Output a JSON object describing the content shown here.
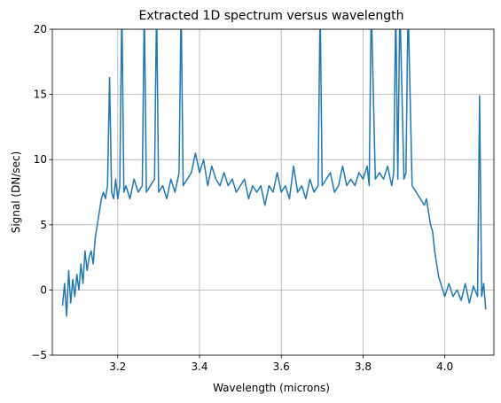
{
  "chart_data": {
    "type": "line",
    "title": "Extracted 1D spectrum versus wavelength",
    "xlabel": "Wavelength (microns)",
    "ylabel": "Signal (DN/sec)",
    "xlim": [
      3.04,
      4.12
    ],
    "ylim": [
      -5,
      20
    ],
    "xticks": [
      3.2,
      3.4,
      3.6,
      3.8,
      4.0
    ],
    "xtick_labels": [
      "3.2",
      "3.4",
      "3.6",
      "3.8",
      "4.0"
    ],
    "yticks": [
      -5,
      0,
      5,
      10,
      15,
      20
    ],
    "ytick_labels": [
      "−5",
      "0",
      "5",
      "10",
      "15",
      "20"
    ],
    "grid": true,
    "series": [
      {
        "color": "#1f77b4",
        "x": [
          3.065,
          3.07,
          3.075,
          3.08,
          3.085,
          3.09,
          3.095,
          3.1,
          3.105,
          3.11,
          3.115,
          3.12,
          3.125,
          3.13,
          3.135,
          3.14,
          3.145,
          3.15,
          3.155,
          3.16,
          3.165,
          3.17,
          3.175,
          3.18,
          3.185,
          3.19,
          3.195,
          3.2,
          3.205,
          3.21,
          3.215,
          3.22,
          3.23,
          3.24,
          3.25,
          3.26,
          3.265,
          3.27,
          3.28,
          3.29,
          3.295,
          3.3,
          3.31,
          3.32,
          3.33,
          3.34,
          3.35,
          3.355,
          3.36,
          3.37,
          3.38,
          3.39,
          3.4,
          3.41,
          3.42,
          3.43,
          3.44,
          3.45,
          3.46,
          3.47,
          3.48,
          3.49,
          3.5,
          3.51,
          3.52,
          3.53,
          3.54,
          3.55,
          3.56,
          3.57,
          3.58,
          3.59,
          3.6,
          3.61,
          3.62,
          3.63,
          3.64,
          3.65,
          3.66,
          3.67,
          3.68,
          3.69,
          3.695,
          3.7,
          3.71,
          3.72,
          3.73,
          3.74,
          3.75,
          3.76,
          3.77,
          3.78,
          3.79,
          3.8,
          3.81,
          3.815,
          3.82,
          3.83,
          3.84,
          3.85,
          3.86,
          3.87,
          3.875,
          3.88,
          3.885,
          3.89,
          3.9,
          3.905,
          3.91,
          3.92,
          3.93,
          3.94,
          3.95,
          3.955,
          3.96,
          3.965,
          3.97,
          3.975,
          3.98,
          3.985,
          3.99,
          3.995,
          4.0,
          4.01,
          4.02,
          4.03,
          4.04,
          4.05,
          4.06,
          4.07,
          4.08,
          4.085,
          4.09,
          4.095,
          4.1
        ],
        "y": [
          -1.2,
          0.5,
          -2.0,
          1.5,
          -1.0,
          0.8,
          -0.5,
          1.2,
          0.0,
          2.0,
          0.5,
          3.0,
          1.5,
          2.5,
          3.0,
          2.0,
          4.0,
          5.0,
          6.0,
          7.0,
          7.5,
          7.0,
          8.0,
          16.3,
          7.5,
          7.0,
          8.5,
          7.0,
          8.0,
          22.0,
          7.5,
          8.0,
          7.0,
          8.5,
          7.5,
          8.0,
          22.0,
          7.5,
          8.0,
          8.5,
          22.0,
          7.5,
          8.0,
          7.0,
          8.5,
          7.5,
          9.0,
          22.0,
          8.0,
          8.5,
          9.0,
          10.5,
          9.0,
          10.0,
          8.0,
          9.5,
          8.5,
          8.0,
          9.0,
          8.0,
          8.5,
          7.5,
          8.0,
          8.5,
          7.0,
          8.0,
          7.5,
          8.0,
          6.5,
          8.0,
          7.5,
          9.0,
          7.5,
          8.0,
          7.0,
          9.5,
          7.5,
          8.0,
          7.0,
          8.5,
          7.5,
          8.0,
          22.0,
          8.0,
          8.5,
          9.0,
          7.5,
          8.0,
          9.5,
          8.0,
          8.5,
          8.0,
          9.0,
          8.5,
          9.5,
          8.0,
          22.0,
          8.5,
          9.0,
          8.5,
          9.5,
          8.0,
          9.0,
          22.0,
          8.5,
          22.0,
          8.5,
          9.0,
          22.0,
          8.0,
          7.5,
          7.0,
          6.5,
          7.0,
          6.0,
          5.0,
          4.5,
          3.0,
          2.0,
          1.0,
          0.5,
          0.0,
          -0.5,
          0.5,
          -0.5,
          0.0,
          -0.8,
          0.5,
          -1.0,
          0.3,
          -0.5,
          14.9,
          -0.5,
          0.5,
          -1.5
        ]
      }
    ]
  }
}
